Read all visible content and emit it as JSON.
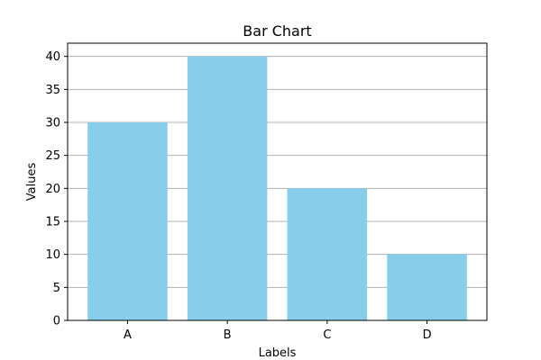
{
  "chart_data": {
    "type": "bar",
    "title": "Bar Chart",
    "xlabel": "Labels",
    "ylabel": "Values",
    "categories": [
      "A",
      "B",
      "C",
      "D"
    ],
    "values": [
      30,
      40,
      20,
      10
    ],
    "ylim": [
      0,
      42
    ],
    "yticks": [
      0,
      5,
      10,
      15,
      20,
      25,
      30,
      35,
      40
    ],
    "grid": "y",
    "legend": "none",
    "bar_color": "#87CEEB",
    "grid_color": "#b0b0b0",
    "axis_color": "#000000"
  }
}
